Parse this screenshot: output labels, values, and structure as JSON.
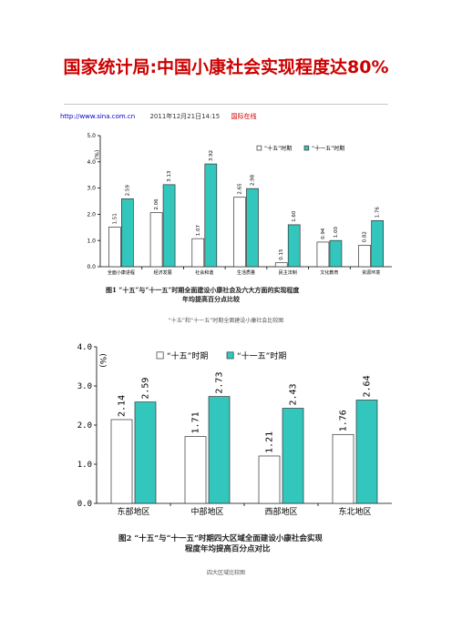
{
  "article": {
    "title": "国家统计局:中国小康社会实现程度达80%",
    "url": "http://www.sina.com.cn",
    "datetime": "2011年12月21日14:15",
    "source_link": "国际在线"
  },
  "figure1": {
    "caption": "“十五”和“十一五”时期全面建设小康社会比较图",
    "title_line1": "图1  “十五”与“十一五”时期全面建设小康社会及六大方面的实现程度",
    "title_line2": "年均提高百分点比较"
  },
  "figure2": {
    "caption": "四大区域比较图",
    "title_line1": "图2  “十五”与“十一五”时期四大区域全面建设小康社会实现",
    "title_line2": "程度年均提高百分点对比"
  },
  "chart_data": [
    {
      "type": "bar",
      "title": "“十五”与“十一五”时期全面建设小康社会及六大方面的实现程度年均提高百分点比较",
      "ylabel": "(%)",
      "ylim": [
        0,
        5
      ],
      "yticks": [
        "0.0",
        "1.0",
        "2.0",
        "3.0",
        "4.0",
        "5.0"
      ],
      "categories": [
        "全面小康进程",
        "经济发展",
        "社会和谐",
        "生活质量",
        "民主法制",
        "文化教育",
        "资源环境"
      ],
      "series": [
        {
          "name": "“十五”时期",
          "values": [
            1.51,
            2.06,
            1.07,
            2.65,
            0.15,
            0.94,
            0.82
          ],
          "labels": [
            "1.51",
            "2.06",
            "1.07",
            "2.65",
            "0.15",
            "0.94",
            "0.82"
          ],
          "color": "#ffffff"
        },
        {
          "name": "“十一五”时期",
          "values": [
            2.59,
            3.13,
            3.92,
            2.98,
            1.6,
            1.0,
            1.76
          ],
          "labels": [
            "2.59",
            "3.13",
            "3.92",
            "2.98",
            "1.60",
            "1.00",
            "1.76"
          ],
          "color": "#33c6bd"
        }
      ],
      "legend": "top-right",
      "grid": false
    },
    {
      "type": "bar",
      "title": "“十五”与“十一五”时期四大区域全面建设小康社会实现程度年均提高百分点对比",
      "ylabel": "(%)",
      "ylim": [
        0,
        4
      ],
      "yticks": [
        "0.0",
        "1.0",
        "2.0",
        "3.0",
        "4.0"
      ],
      "categories": [
        "东部地区",
        "中部地区",
        "西部地区",
        "东北地区"
      ],
      "series": [
        {
          "name": "“十五”时期",
          "values": [
            2.14,
            1.71,
            1.21,
            1.76
          ],
          "labels": [
            "2.14",
            "1.71",
            "1.21",
            "1.76"
          ],
          "color": "#ffffff"
        },
        {
          "name": "“十一五”时期",
          "values": [
            2.59,
            2.73,
            2.43,
            2.64
          ],
          "labels": [
            "2.59",
            "2.73",
            "2.43",
            "2.64"
          ],
          "color": "#33c6bd"
        }
      ],
      "legend": "top-right",
      "grid": false
    }
  ]
}
